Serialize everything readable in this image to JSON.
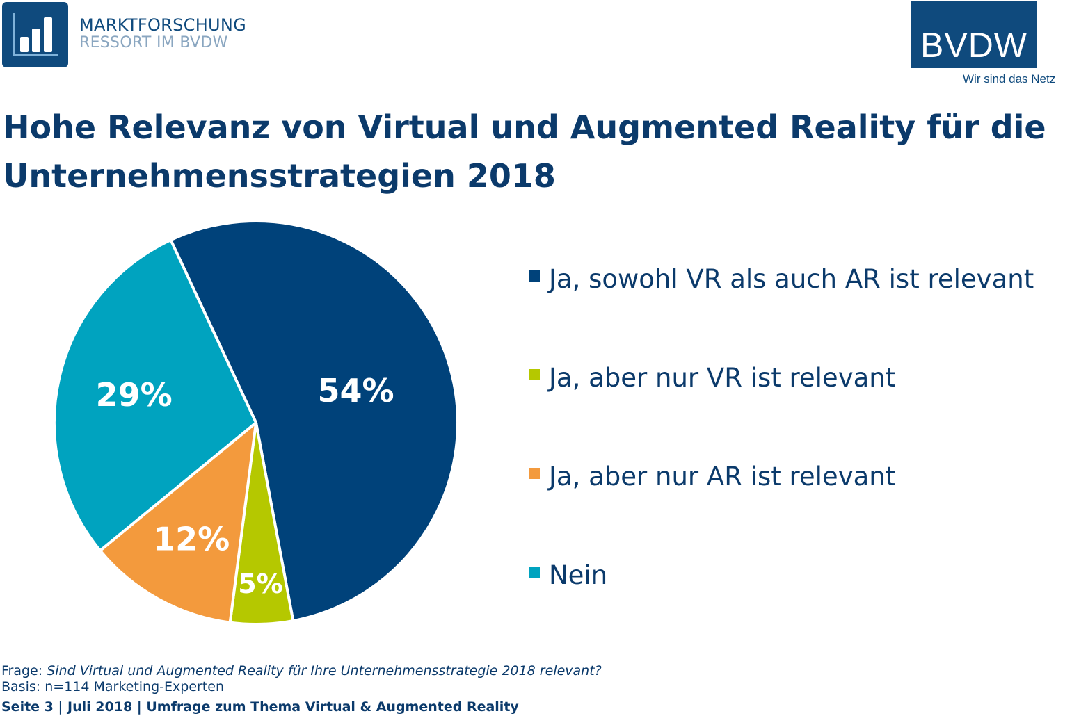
{
  "header": {
    "brand_left_line1": "MARKTFORSCHUNG",
    "brand_left_line2": "RESSORT IM BVDW",
    "brand_right": "BVDW",
    "tagline": "Wir sind das Netz",
    "colors": {
      "brand_blue": "#0f4a7d",
      "brand_grey": "#8aa6c0"
    }
  },
  "title": "Hohe Relevanz von Virtual und Augmented Reality für die Unternehmensstrategien 2018",
  "chart_data": {
    "type": "pie",
    "title": "",
    "unit": "%",
    "legend_position": "right",
    "slices": [
      {
        "name": "Ja, sowohl VR als auch AR ist relevant",
        "value": 54,
        "label": "54%",
        "color": "#00427a"
      },
      {
        "name": "Ja, aber nur VR ist relevant",
        "value": 5,
        "label": "5%",
        "color": "#b5c800"
      },
      {
        "name": "Ja, aber nur AR ist relevant",
        "value": 12,
        "label": "12%",
        "color": "#f39a3d"
      },
      {
        "name": "Nein",
        "value": 29,
        "label": "29%",
        "color": "#00a3bf"
      }
    ]
  },
  "notes": {
    "frage_label": "Frage:",
    "frage_text": "Sind Virtual und Augmented Reality für Ihre Unternehmensstrategie 2018 relevant?",
    "basis_label": "Basis:",
    "basis_text": "n=114 Marketing-Experten"
  },
  "footer": "Seite 3 | Juli 2018 | Umfrage zum Thema Virtual & Augmented Reality"
}
